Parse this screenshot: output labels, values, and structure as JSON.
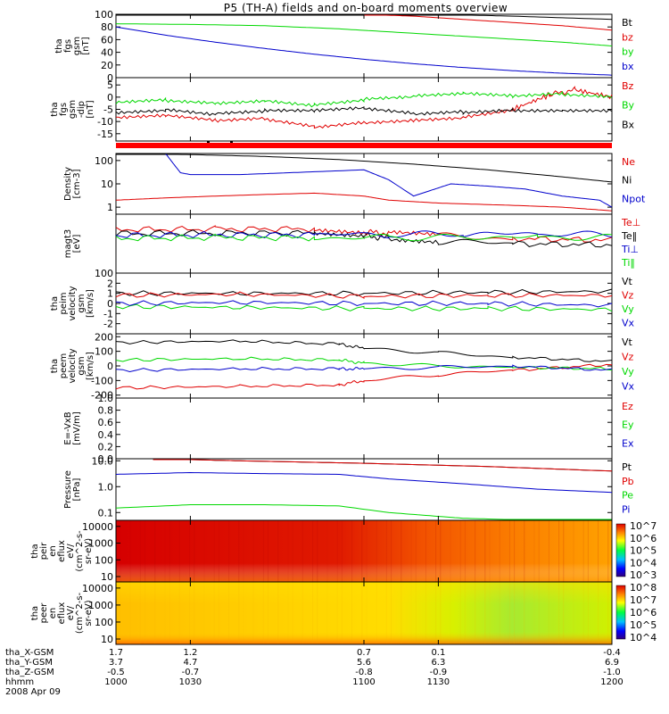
{
  "title": "P5 (TH-A) fields and on-board moments overview",
  "colors": {
    "black": "#000000",
    "red": "#e00000",
    "green": "#00d800",
    "blue": "#0000cc",
    "redbar": "#ff0000"
  },
  "chart_data": [
    {
      "type": "line",
      "id": "fgs",
      "ylabel_lines": [
        "tha",
        "fgs",
        "gsm",
        "[nT]"
      ],
      "ylim": [
        0,
        100
      ],
      "yticks": [
        "0",
        "20",
        "40",
        "60",
        "80",
        "100"
      ],
      "series": [
        {
          "name": "Bt",
          "color": "black",
          "x": [
            1000,
            1015,
            1030,
            1050,
            1070,
            1100,
            1130,
            1160,
            1200
          ],
          "y": [
            100,
            100,
            100,
            100,
            100,
            100,
            100,
            97,
            92
          ]
        },
        {
          "name": "bz",
          "color": "red",
          "x": [
            1100,
            1120,
            1140,
            1160,
            1180,
            1200
          ],
          "y": [
            100,
            97,
            92,
            87,
            82,
            75
          ]
        },
        {
          "name": "by",
          "color": "green",
          "x": [
            1000,
            1030,
            1060,
            1090,
            1120,
            1150,
            1180,
            1200
          ],
          "y": [
            85,
            84,
            82,
            77,
            70,
            63,
            56,
            50
          ]
        },
        {
          "name": "bx",
          "color": "blue",
          "x": [
            1000,
            1020,
            1040,
            1060,
            1080,
            1100,
            1120,
            1140,
            1160,
            1180,
            1200
          ],
          "y": [
            80,
            67,
            56,
            46,
            37,
            29,
            22,
            16,
            11,
            7,
            4
          ]
        }
      ]
    },
    {
      "type": "line",
      "id": "fgs_dip",
      "ylabel_lines": [
        "tha",
        "fgs",
        "gsm",
        "-dip",
        "[nT]"
      ],
      "ylim": [
        -18,
        8
      ],
      "yticks": [
        "-15",
        "-10",
        "-5",
        "0",
        "5"
      ],
      "series": [
        {
          "name": "Bz",
          "color": "red",
          "x": [
            1000,
            1020,
            1040,
            1060,
            1080,
            1100,
            1120,
            1140,
            1160,
            1175,
            1185,
            1200
          ],
          "y": [
            -9,
            -8,
            -10,
            -9,
            -12,
            -10,
            -9,
            -8,
            -5,
            1,
            3,
            0
          ]
        },
        {
          "name": "By",
          "color": "green",
          "x": [
            1000,
            1020,
            1040,
            1060,
            1080,
            1100,
            1120,
            1140,
            1160,
            1180,
            1200
          ],
          "y": [
            -2,
            -1,
            -2,
            -1,
            -3,
            -1,
            0,
            1,
            0,
            1,
            0
          ]
        },
        {
          "name": "Bx",
          "color": "black",
          "x": [
            1000,
            1020,
            1040,
            1060,
            1080,
            1100,
            1120,
            1140,
            1160,
            1180,
            1200
          ],
          "y": [
            -6,
            -5,
            -7,
            -6,
            -6,
            -5,
            -7,
            -6,
            -5,
            -5,
            -5
          ]
        }
      ]
    },
    {
      "type": "line",
      "id": "density",
      "log": true,
      "ylabel_lines": [
        "Density",
        "[cm-3]"
      ],
      "ylim": [
        0.5,
        200
      ],
      "yticks": [
        "1",
        "10",
        "100"
      ],
      "ytick_values": [
        1,
        10,
        100
      ],
      "series": [
        {
          "name": "Ne",
          "color": "red",
          "x": [
            1000,
            1020,
            1040,
            1060,
            1080,
            1100,
            1110,
            1130,
            1160,
            1180,
            1200
          ],
          "y": [
            2,
            2.5,
            3,
            3.5,
            4,
            3,
            2,
            1.5,
            1.2,
            1,
            0.7
          ]
        },
        {
          "name": "Ni",
          "color": "black",
          "x": [
            1000,
            1030,
            1060,
            1090,
            1120,
            1150,
            1180,
            1200
          ],
          "y": [
            200,
            180,
            150,
            110,
            70,
            40,
            20,
            12
          ]
        },
        {
          "name": "Npot",
          "color": "blue",
          "x": [
            1020,
            1026,
            1030,
            1050,
            1070,
            1100,
            1110,
            1120,
            1135,
            1150,
            1165,
            1180,
            1195,
            1200
          ],
          "y": [
            200,
            30,
            25,
            25,
            30,
            40,
            15,
            3,
            10,
            8,
            6,
            3,
            2,
            1
          ]
        }
      ]
    },
    {
      "type": "line",
      "id": "temp",
      "log": true,
      "ylabel_lines": [
        "magt3",
        "[eV]"
      ],
      "ylim": [
        100,
        10000
      ],
      "yticks": [
        "100"
      ],
      "ytick_values": [
        100
      ],
      "series": [
        {
          "name": "Te⊥",
          "color": "red",
          "x": [
            1000,
            1040,
            1080,
            1100,
            1110,
            1130,
            1160,
            1200
          ],
          "y": [
            3000,
            3100,
            3200,
            2500,
            2200,
            1800,
            1500,
            1300
          ]
        },
        {
          "name": "Te‖",
          "color": "black",
          "x": [
            1000,
            1040,
            1080,
            1100,
            1110,
            1130,
            1160,
            1200
          ],
          "y": [
            2200,
            2300,
            2300,
            1900,
            1500,
            1200,
            1000,
            900
          ]
        },
        {
          "name": "Ti⊥",
          "color": "blue",
          "x": [
            1000,
            1040,
            1080,
            1110,
            1140,
            1170,
            1200
          ],
          "y": [
            1900,
            2000,
            2000,
            2000,
            2100,
            2100,
            2000
          ]
        },
        {
          "name": "Ti‖",
          "color": "green",
          "x": [
            1000,
            1040,
            1080,
            1110,
            1140,
            1170,
            1200
          ],
          "y": [
            1500,
            1600,
            1600,
            1600,
            1700,
            1700,
            1600
          ]
        }
      ]
    },
    {
      "type": "line",
      "id": "peim_vel",
      "ylabel_lines": [
        "tha",
        "peim",
        "velocity",
        "gsm",
        "[km/s]"
      ],
      "ylim": [
        -3,
        3
      ],
      "yticks": [
        "-2",
        "-1",
        "0",
        "1",
        "2"
      ],
      "series": [
        {
          "name": "Vt",
          "color": "black",
          "x": [
            1000,
            1050,
            1100,
            1150,
            1200
          ],
          "y": [
            1,
            1,
            1,
            1.1,
            1.2
          ]
        },
        {
          "name": "Vz",
          "color": "red",
          "x": [
            1000,
            1050,
            1100,
            1150,
            1200
          ],
          "y": [
            0.8,
            0.9,
            0.7,
            0.8,
            0.8
          ]
        },
        {
          "name": "Vy",
          "color": "green",
          "x": [
            1000,
            1050,
            1100,
            1150,
            1200
          ],
          "y": [
            -0.3,
            -0.4,
            -0.5,
            -0.5,
            -0.6
          ]
        },
        {
          "name": "Vx",
          "color": "blue",
          "x": [
            1000,
            1050,
            1100,
            1150,
            1200
          ],
          "y": [
            0,
            0.1,
            0,
            0,
            -0.2
          ]
        }
      ]
    },
    {
      "type": "line",
      "id": "peem_vel",
      "ylabel_lines": [
        "tha",
        "peem",
        "velocity",
        "gsm",
        "[km/s]"
      ],
      "ylim": [
        -220,
        220
      ],
      "yticks": [
        "-200",
        "-100",
        "0",
        "100",
        "200"
      ],
      "series": [
        {
          "name": "Vt",
          "color": "black",
          "x": [
            1000,
            1050,
            1090,
            1100,
            1130,
            1160,
            1200
          ],
          "y": [
            160,
            170,
            150,
            120,
            90,
            60,
            30
          ]
        },
        {
          "name": "Vz",
          "color": "red",
          "x": [
            1000,
            1050,
            1090,
            1100,
            1130,
            1160,
            1200
          ],
          "y": [
            -150,
            -140,
            -130,
            -100,
            -60,
            -30,
            10
          ]
        },
        {
          "name": "Vy",
          "color": "green",
          "x": [
            1000,
            1050,
            1090,
            1100,
            1130,
            1160,
            1200
          ],
          "y": [
            40,
            50,
            40,
            20,
            0,
            -10,
            -20
          ]
        },
        {
          "name": "Vx",
          "color": "blue",
          "x": [
            1000,
            1050,
            1090,
            1100,
            1130,
            1160,
            1200
          ],
          "y": [
            -30,
            -20,
            -20,
            -20,
            -10,
            0,
            -30
          ]
        }
      ]
    },
    {
      "type": "line",
      "id": "efield",
      "ylabel_lines": [
        "E=-VxB",
        "[mV/m]"
      ],
      "ylim": [
        0,
        1
      ],
      "yticks": [
        "0.0",
        "0.2",
        "0.4",
        "0.6",
        "0.8",
        "1.0"
      ],
      "series": [
        {
          "name": "Ez",
          "color": "red",
          "x": [],
          "y": []
        },
        {
          "name": "Ey",
          "color": "green",
          "x": [],
          "y": []
        },
        {
          "name": "Ex",
          "color": "blue",
          "x": [],
          "y": []
        }
      ]
    },
    {
      "type": "line",
      "id": "pressure",
      "log": true,
      "ylabel_lines": [
        "Pressure",
        "[nPa]"
      ],
      "ylim": [
        0.05,
        12
      ],
      "yticks": [
        "0.1",
        "1.0",
        "10.0"
      ],
      "ytick_values": [
        0.1,
        1,
        10
      ],
      "series": [
        {
          "name": "Pt",
          "color": "black",
          "x": [
            1015,
            1050,
            1100,
            1150,
            1200
          ],
          "y": [
            12,
            10,
            8,
            6,
            4
          ]
        },
        {
          "name": "Pb",
          "color": "red",
          "x": [
            1015,
            1050,
            1100,
            1150,
            1200
          ],
          "y": [
            12,
            10,
            8,
            6,
            4
          ]
        },
        {
          "name": "Pe",
          "color": "green",
          "x": [
            1000,
            1030,
            1060,
            1090,
            1110,
            1140,
            1170,
            1200
          ],
          "y": [
            0.15,
            0.2,
            0.2,
            0.18,
            0.1,
            0.06,
            0.05,
            0.05
          ]
        },
        {
          "name": "Pi",
          "color": "blue",
          "x": [
            1000,
            1030,
            1060,
            1090,
            1110,
            1140,
            1170,
            1200
          ],
          "y": [
            3,
            3.5,
            3.2,
            3,
            2,
            1.3,
            0.8,
            0.6
          ]
        }
      ]
    },
    {
      "type": "heatmap",
      "id": "peir",
      "ylabel_lines": [
        "tha",
        "peir",
        "en",
        "eflux",
        "eV/",
        "(cm^2-s-",
        "sr-eV)"
      ],
      "yticks": [
        "10",
        "100",
        "1000",
        "10000"
      ],
      "colorbar_ticks": [
        "10^3",
        "10^4",
        "10^5",
        "10^6",
        "10^7"
      ]
    },
    {
      "type": "heatmap",
      "id": "peer",
      "ylabel_lines": [
        "tha",
        "peer",
        "en",
        "eflux",
        "eV/",
        "(cm^2-s-",
        "sr-eV)"
      ],
      "yticks": [
        "10",
        "100",
        "1000",
        "10000"
      ],
      "colorbar_ticks": [
        "10^4",
        "10^5",
        "10^6",
        "10^7",
        "10^8"
      ]
    }
  ],
  "footer": {
    "row_labels": [
      "tha_X-GSM",
      "tha_Y-GSM",
      "tha_Z-GSM",
      "hhmm",
      "2008 Apr 09"
    ],
    "columns": [
      {
        "x": "1.7",
        "y": "3.7",
        "z": "-0.5",
        "t": "1000"
      },
      {
        "x": "1.2",
        "y": "4.7",
        "z": "-0.7",
        "t": "1030"
      },
      {
        "x": "0.7",
        "y": "5.6",
        "z": "-0.8",
        "t": "1100"
      },
      {
        "x": "0.1",
        "y": "6.3",
        "z": "-0.9",
        "t": "1130"
      },
      {
        "x": "-0.4",
        "y": "6.9",
        "z": "-1.0",
        "t": "1200"
      }
    ]
  }
}
